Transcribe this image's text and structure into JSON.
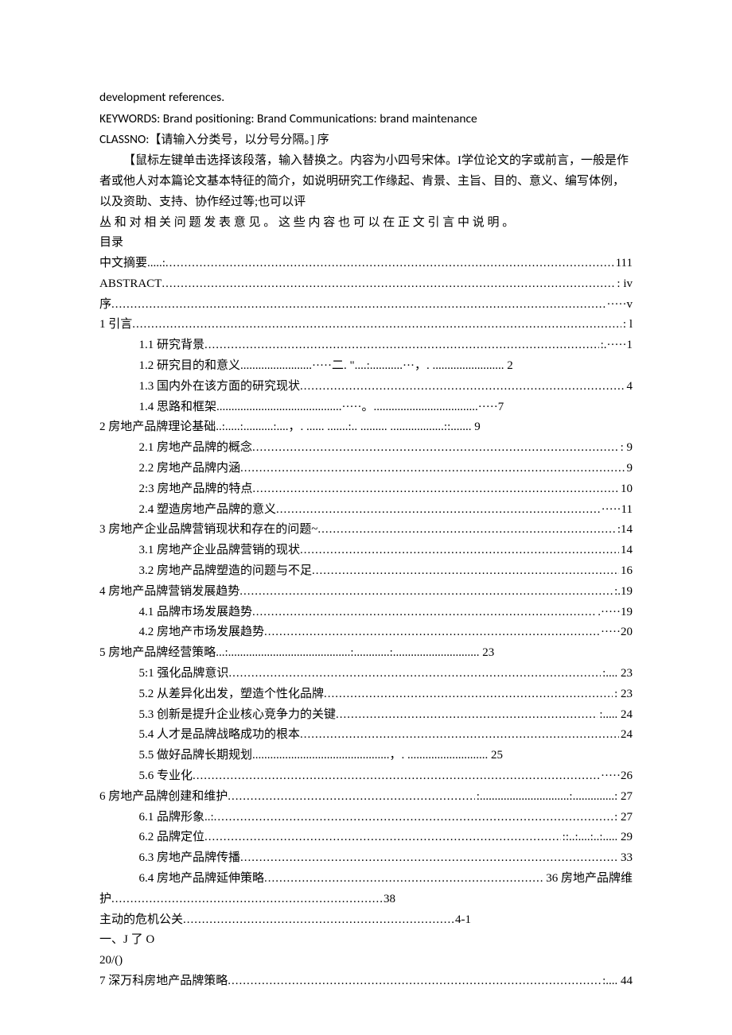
{
  "text_color": "#000000",
  "background_color": "#ffffff",
  "font_size_pt": 11,
  "header": {
    "line1": "development references.",
    "line2": "KEYWORDS: Brand positioning: Brand Communications: brand maintenance",
    "line3_prefix": "CLASSNO:【请输入分类号，以分号分隔。] 序"
  },
  "intro_paragraph": "【鼠标左键单击选择该段落，输入替换之。内容为小四号宋体。I学位论文的字或前言，一般是作者或他人对本篇论文基本特征的简介，如说明研究工作缘起、肯景、主旨、目的、意义、编写体例，以及资助、支持、协作经过等;也可以评",
  "spaced_line": "丛 和 对 相 关 问 题 发 表 意 见 。 这 些 内 容 也 可 以 在 正 文 引 言 中 说 明 。",
  "mulu": "目录",
  "toc_top": [
    {
      "label": "中文摘要.....:",
      "page": "111"
    },
    {
      "label": "ABSTRACT",
      "page": " iv",
      "dots_suffix": ":"
    },
    {
      "label": "序",
      "page": "·····v"
    },
    {
      "label": "1 引言",
      "page": " l",
      "dots_suffix": ":"
    }
  ],
  "toc_1_children": [
    {
      "label": "1.1 研究背景",
      "page": ".·····1",
      "dots_suffix": ":"
    },
    {
      "label": "1.2 研究目的和意义........................·····二. \"....:...........···，.   ........................ 2",
      "raw": true
    },
    {
      "label": "1.3 国内外在该方面的研究现状",
      "page": " 4"
    },
    {
      "label": "1.4 思路和框架..........................................·····。...................................·····7",
      "raw": true
    }
  ],
  "toc_2": {
    "label": "2 房地产品牌理论基础..:.....:..........:....，.   ......   .......:..   .........   ..................::....... 9",
    "raw": true
  },
  "toc_2_children": [
    {
      "label": "2.1 房地产品牌的概念",
      "page": " 9",
      "dots_suffix": ":"
    },
    {
      "label": "2.2 房地产品牌内涵",
      "page": " 9"
    },
    {
      "label": "2:3 房地产品牌的特点",
      "page": "10"
    },
    {
      "label": "2.4 塑造房地产品牌的意义",
      "page": "·····11"
    }
  ],
  "toc_3": {
    "label": "3 房地产企业品牌营销现状和存在的问题~",
    "page": "14",
    "dots_suffix": ":"
  },
  "toc_3_children": [
    {
      "label": "3.1 房地产企业品牌营销的现状",
      "page": "14"
    },
    {
      "label": "3.2 房地产品牌塑造的问题与不足",
      "page": "16"
    }
  ],
  "toc_4": {
    "label": "4 房地产品牌营销发展趋势",
    "page": ":.19"
  },
  "toc_4_children": [
    {
      "label": "4.1 品牌市场发展趋势",
      "page": ".·····19"
    },
    {
      "label": "4.2 房地产市场发展趋势",
      "page": "·····20"
    }
  ],
  "toc_5": {
    "label": "5 房地产品牌经营策略...:.........................................:............:............................. 23",
    "raw": true
  },
  "toc_5_children": [
    {
      "label": "5:1 强化品牌意识",
      "page": ":.... 23"
    },
    {
      "label": "5.2 从差异化出发，塑造个性化品牌",
      "page": " 23",
      "dots_suffix": ":"
    },
    {
      "label": "5.3 创新是提升企业核心竞争力的关键",
      "page": ":..... 24"
    },
    {
      "label": "5.4 人才是品牌战略成功的根本",
      "page": " 24"
    },
    {
      "label": "5.5 做好品牌长期规划..............................................，.   ........................... 25",
      "raw": true
    },
    {
      "label": "5.6 专业化",
      "page": "·····26"
    }
  ],
  "toc_6": {
    "label": "6 房地产品牌创建和维护",
    "page": " 27",
    "dots_suffix": ":..............................:..............:"
  },
  "toc_6_children": [
    {
      "label": "6.1 品牌形象..:",
      "page": ": 27"
    },
    {
      "label": "6.2 品牌定位",
      "page": ":..:....:..:..... 29",
      "dots_suffix": ":"
    },
    {
      "label": "6.3 房地产品牌传播",
      "page": " 33"
    },
    {
      "label": "6.4 房地产品牌延伸策略",
      "page": " 36 房地产品牌维",
      "overflow": true
    }
  ],
  "toc_tail": [
    {
      "label": "护",
      "page": " 38",
      "short": true
    },
    {
      "label": "主动的危机公关",
      "page": " 4-1",
      "short": true
    },
    {
      "label": "一、J 了 O",
      "raw_plain": true
    },
    {
      "label": "20/()",
      "raw_plain": true
    }
  ],
  "toc_7": {
    "label": "7 深万科房地产品牌策略",
    "page": ":.... 44"
  }
}
